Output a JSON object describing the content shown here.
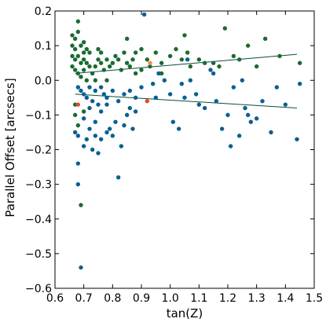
{
  "chart_data": {
    "type": "scatter",
    "title": "",
    "xlabel": "tan(Z)",
    "ylabel": "Parallel Offset [arcsecs]",
    "xlim": [
      0.6,
      1.5
    ],
    "ylim": [
      -0.6,
      0.2
    ],
    "xticks": [
      0.6,
      0.7,
      0.8,
      0.9,
      1.0,
      1.1,
      1.2,
      1.3,
      1.4,
      1.5
    ],
    "xtick_labels": [
      "0.6",
      "0.7",
      "0.8",
      "0.9",
      "1.0",
      "1.1",
      "1.2",
      "1.3",
      "1.4",
      "1.5"
    ],
    "yticks": [
      0.2,
      0.1,
      0.0,
      -0.1,
      -0.2,
      -0.3,
      -0.4,
      -0.5,
      -0.6
    ],
    "ytick_labels": [
      "0.2",
      "0.1",
      "0.0",
      "−0.1",
      "−0.2",
      "−0.3",
      "−0.4",
      "−0.5",
      "−0.6"
    ],
    "grid": false,
    "legend": "none",
    "colors": {
      "green": "#1a6b32",
      "blue": "#0a5f91",
      "red": "#e34a33",
      "orange": "#f28e52",
      "fit_line": "#0b4d3a"
    },
    "series": [
      {
        "color": "green",
        "points": [
          [
            0.66,
            0.13
          ],
          [
            0.67,
            0.12
          ],
          [
            0.68,
            0.17
          ],
          [
            0.68,
            0.14
          ],
          [
            0.66,
            0.1
          ],
          [
            0.67,
            0.09
          ],
          [
            0.69,
            0.1
          ],
          [
            0.7,
            0.11
          ],
          [
            0.71,
            0.09
          ],
          [
            0.72,
            0.08
          ],
          [
            0.66,
            0.07
          ],
          [
            0.67,
            0.06
          ],
          [
            0.68,
            0.07
          ],
          [
            0.69,
            0.05
          ],
          [
            0.7,
            0.06
          ],
          [
            0.71,
            0.05
          ],
          [
            0.72,
            0.04
          ],
          [
            0.66,
            0.04
          ],
          [
            0.67,
            0.03
          ],
          [
            0.68,
            0.02
          ],
          [
            0.69,
            0.01
          ],
          [
            0.7,
            0.03
          ],
          [
            0.71,
            0.0
          ],
          [
            0.73,
            0.02
          ],
          [
            0.74,
            0.04
          ],
          [
            0.75,
            0.09
          ],
          [
            0.76,
            0.05
          ],
          [
            0.77,
            0.03
          ],
          [
            0.78,
            0.06
          ],
          [
            0.79,
            0.04
          ],
          [
            0.8,
            0.05
          ],
          [
            0.81,
            0.07
          ],
          [
            0.82,
            0.06
          ],
          [
            0.83,
            0.03
          ],
          [
            0.84,
            0.08
          ],
          [
            0.85,
            0.05
          ],
          [
            0.86,
            0.04
          ],
          [
            0.87,
            0.06
          ],
          [
            0.88,
            0.02
          ],
          [
            0.9,
            0.03
          ],
          [
            0.92,
            0.06
          ],
          [
            0.93,
            0.04
          ],
          [
            0.95,
            0.08
          ],
          [
            0.97,
            0.05
          ],
          [
            1.0,
            0.07
          ],
          [
            1.02,
            0.09
          ],
          [
            1.04,
            0.06
          ],
          [
            1.06,
            0.08
          ],
          [
            1.07,
            0.04
          ],
          [
            1.1,
            0.06
          ],
          [
            1.12,
            0.05
          ],
          [
            1.15,
            0.05
          ],
          [
            1.17,
            0.04
          ],
          [
            1.19,
            0.15
          ],
          [
            1.22,
            0.07
          ],
          [
            1.24,
            0.06
          ],
          [
            1.27,
            0.1
          ],
          [
            1.3,
            0.04
          ],
          [
            1.33,
            0.12
          ],
          [
            1.38,
            0.07
          ],
          [
            1.45,
            0.05
          ],
          [
            0.67,
            -0.07
          ],
          [
            0.67,
            -0.1
          ],
          [
            0.68,
            -0.13
          ],
          [
            0.69,
            -0.36
          ],
          [
            0.7,
            -0.09
          ],
          [
            0.74,
            0.0
          ],
          [
            0.76,
            0.08
          ],
          [
            0.78,
            0.0
          ],
          [
            0.9,
            0.09
          ],
          [
            0.97,
            0.02
          ],
          [
            1.05,
            0.13
          ],
          [
            0.85,
            0.12
          ],
          [
            0.88,
            0.08
          ],
          [
            0.75,
            0.06
          ],
          [
            0.7,
            0.08
          ]
        ]
      },
      {
        "color": "blue",
        "points": [
          [
            0.68,
            -0.02
          ],
          [
            0.69,
            -0.03
          ],
          [
            0.7,
            -0.04
          ],
          [
            0.71,
            -0.05
          ],
          [
            0.72,
            -0.02
          ],
          [
            0.73,
            -0.06
          ],
          [
            0.74,
            -0.03
          ],
          [
            0.75,
            -0.07
          ],
          [
            0.76,
            -0.02
          ],
          [
            0.77,
            -0.04
          ],
          [
            0.78,
            -0.05
          ],
          [
            0.8,
            -0.03
          ],
          [
            0.82,
            -0.06
          ],
          [
            0.84,
            -0.04
          ],
          [
            0.86,
            -0.03
          ],
          [
            0.88,
            -0.05
          ],
          [
            0.9,
            -0.02
          ],
          [
            0.67,
            -0.15
          ],
          [
            0.68,
            -0.16
          ],
          [
            0.68,
            -0.24
          ],
          [
            0.68,
            -0.3
          ],
          [
            0.69,
            -0.54
          ],
          [
            0.7,
            -0.19
          ],
          [
            0.71,
            -0.17
          ],
          [
            0.72,
            -0.14
          ],
          [
            0.73,
            -0.2
          ],
          [
            0.74,
            -0.16
          ],
          [
            0.75,
            -0.21
          ],
          [
            0.76,
            -0.17
          ],
          [
            0.78,
            -0.15
          ],
          [
            0.79,
            -0.14
          ],
          [
            0.8,
            -0.16
          ],
          [
            0.81,
            -0.12
          ],
          [
            0.82,
            -0.28
          ],
          [
            0.83,
            -0.19
          ],
          [
            0.84,
            -0.13
          ],
          [
            0.85,
            -0.1
          ],
          [
            0.86,
            -0.08
          ],
          [
            0.87,
            -0.14
          ],
          [
            0.88,
            -0.09
          ],
          [
            0.91,
            0.19
          ],
          [
            0.94,
            -0.01
          ],
          [
            0.96,
            0.02
          ],
          [
            0.98,
            0.0
          ],
          [
            1.0,
            -0.04
          ],
          [
            1.01,
            -0.12
          ],
          [
            1.03,
            -0.14
          ],
          [
            1.04,
            -0.01
          ],
          [
            1.06,
            0.06
          ],
          [
            1.07,
            0.0
          ],
          [
            1.09,
            -0.04
          ],
          [
            1.1,
            -0.07
          ],
          [
            1.12,
            -0.08
          ],
          [
            1.14,
            0.03
          ],
          [
            1.16,
            -0.06
          ],
          [
            1.18,
            -0.14
          ],
          [
            1.2,
            -0.1
          ],
          [
            1.21,
            -0.19
          ],
          [
            1.22,
            -0.02
          ],
          [
            1.24,
            -0.16
          ],
          [
            1.26,
            -0.08
          ],
          [
            1.27,
            -0.1
          ],
          [
            1.28,
            -0.12
          ],
          [
            1.3,
            -0.11
          ],
          [
            1.32,
            -0.06
          ],
          [
            1.35,
            -0.15
          ],
          [
            1.37,
            -0.02
          ],
          [
            1.4,
            -0.07
          ],
          [
            1.44,
            -0.17
          ],
          [
            1.45,
            -0.01
          ],
          [
            0.7,
            -0.11
          ],
          [
            0.72,
            -0.08
          ],
          [
            0.74,
            -0.12
          ],
          [
            0.76,
            -0.09
          ],
          [
            0.78,
            -0.07
          ],
          [
            0.95,
            -0.05
          ],
          [
            1.05,
            -0.05
          ],
          [
            1.15,
            0.02
          ],
          [
            1.25,
            0.0
          ]
        ]
      },
      {
        "color": "red",
        "points": [
          [
            0.68,
            -0.07
          ],
          [
            0.92,
            -0.06
          ]
        ]
      },
      {
        "color": "orange",
        "points": [
          [
            0.93,
            0.05
          ]
        ]
      }
    ],
    "fit_lines": [
      {
        "color": "fit_line",
        "x": [
          0.67,
          1.44
        ],
        "y": [
          0.02,
          0.075
        ]
      },
      {
        "color": "fit_line",
        "x": [
          0.67,
          1.44
        ],
        "y": [
          -0.04,
          -0.08
        ]
      }
    ]
  }
}
